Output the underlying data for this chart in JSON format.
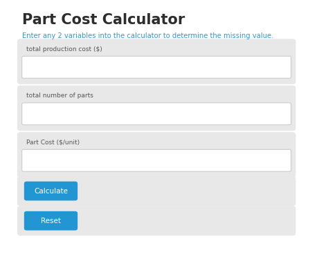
{
  "title": "Part Cost Calculator",
  "subtitle": "Enter any 2 variables into the calculator to determine the missing value.",
  "title_color": "#2d2d2d",
  "subtitle_color": "#3399cc",
  "bg_color": "#ffffff",
  "panel_color": "#e8e8e8",
  "input_bg": "#ffffff",
  "input_border": "#cccccc",
  "button_color": "#2196d3",
  "button_text_color": "#ffffff",
  "fields": [
    "total production cost ($)",
    "total number of parts",
    "Part Cost ($/unit)"
  ],
  "buttons": [
    "Calculate",
    "Reset"
  ],
  "fig_width": 4.74,
  "fig_height": 3.75
}
